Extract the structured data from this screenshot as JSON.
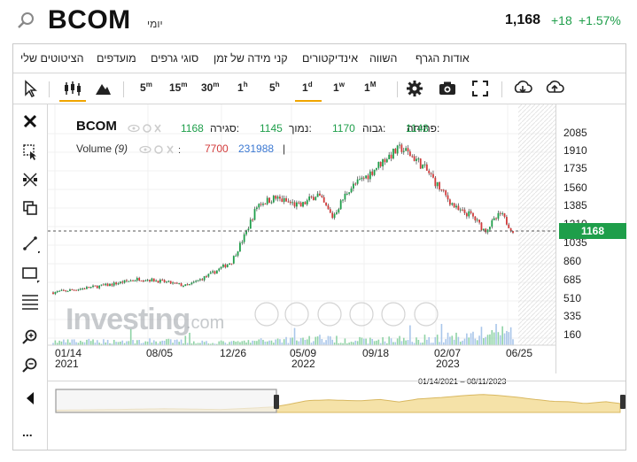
{
  "header": {
    "symbol": "BCOM",
    "timeframe": "יומי",
    "price": "1,168",
    "change": "+18",
    "change_pct": "+1.57%",
    "positive_color": "#1e9e4a"
  },
  "menu": {
    "items": [
      "אודות הגרף",
      "השווה",
      "אינדיקטורים",
      "קני מידה של זמן",
      "סוגי גרפים",
      "מועדפים",
      "הציטוטים שלי"
    ]
  },
  "toolbar": {
    "intervals": [
      "5m",
      "15m",
      "30m",
      "1h",
      "5h",
      "1d",
      "1w",
      "1M"
    ],
    "active_interval": "1d",
    "icons": [
      "cursor-icon",
      "candlestick-icon",
      "mountain-icon",
      "gear-icon",
      "camera-icon",
      "fullscreen-icon",
      "download-icon",
      "upload-icon"
    ]
  },
  "left_tools": {
    "icons": [
      "close-icon",
      "select-icon",
      "draw-tools-icon",
      "clone-icon",
      "trendline-icon",
      "rectangle-icon",
      "fibonacci-icon",
      "zoom-in-icon",
      "zoom-out-icon",
      "collapse-icon",
      "more-icon"
    ],
    "more_label": "..."
  },
  "legend": {
    "symbol": "BCOM",
    "open_label": "פתיחה:",
    "open_value": "1148",
    "high_label": "גבוה:",
    "high_value": "1170",
    "low_label": "נמוך:",
    "low_value": "1145",
    "close_label": "סגירה:",
    "close_value": "1168",
    "volume_label": "Volume",
    "volume_period": "(9)",
    "volume_value_1": "7700",
    "volume_value_2": "231988",
    "separator": "|"
  },
  "watermark": {
    "brand": "Investing",
    "suffix": ".com"
  },
  "current_price_tag": "1168",
  "navigator": {
    "range_label": "01/14/2021 – 08/11/2023"
  },
  "chart_data": {
    "type": "candlestick",
    "title": "BCOM",
    "y_ticks": [
      "2085",
      "1910",
      "1735",
      "1560",
      "1385",
      "1210",
      "1035",
      "860",
      "685",
      "510",
      "335",
      "160"
    ],
    "y_range": [
      160,
      2085
    ],
    "x_ticks": [
      "01/14",
      "08/05",
      "12/26",
      "05/09",
      "09/18",
      "02/07",
      "06/25"
    ],
    "x_years": [
      "2021",
      "2022",
      "2023"
    ],
    "up_color": "#1e9e4a",
    "down_color": "#d23b3b",
    "price_path": [
      [
        "2021-01-14",
        590
      ],
      [
        "2021-03-01",
        620
      ],
      [
        "2021-05-01",
        660
      ],
      [
        "2021-07-01",
        720
      ],
      [
        "2021-08-05",
        700
      ],
      [
        "2021-10-01",
        650
      ],
      [
        "2021-11-15",
        760
      ],
      [
        "2021-12-26",
        880
      ],
      [
        "2022-01-20",
        1120
      ],
      [
        "2022-02-15",
        1420
      ],
      [
        "2022-03-20",
        1480
      ],
      [
        "2022-05-09",
        1400
      ],
      [
        "2022-06-10",
        1520
      ],
      [
        "2022-07-10",
        1300
      ],
      [
        "2022-08-10",
        1560
      ],
      [
        "2022-09-18",
        1700
      ],
      [
        "2022-10-20",
        1850
      ],
      [
        "2022-11-20",
        1950
      ],
      [
        "2022-12-20",
        1840
      ],
      [
        "2023-01-15",
        1700
      ],
      [
        "2023-02-07",
        1540
      ],
      [
        "2023-03-10",
        1360
      ],
      [
        "2023-04-05",
        1320
      ],
      [
        "2023-05-01",
        1170
      ],
      [
        "2023-06-01",
        1330
      ],
      [
        "2023-06-25",
        1168
      ]
    ],
    "volume_path": [
      [
        "2021-01-14",
        120
      ],
      [
        "2021-08-05",
        140
      ],
      [
        "2021-12-26",
        90
      ],
      [
        "2022-05-09",
        220
      ],
      [
        "2022-09-18",
        160
      ],
      [
        "2023-02-07",
        240
      ],
      [
        "2023-06-25",
        480
      ]
    ]
  }
}
